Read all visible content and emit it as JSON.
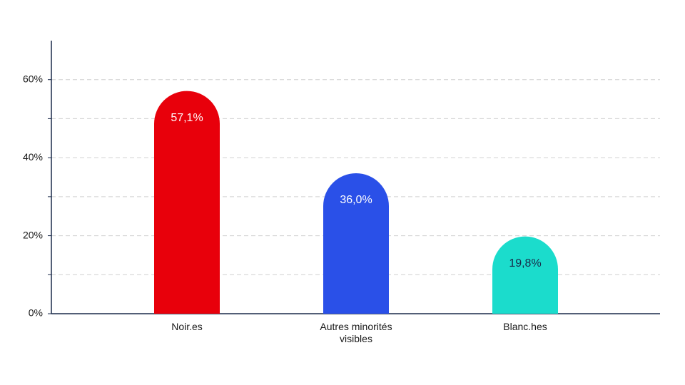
{
  "chart_data": {
    "type": "bar",
    "categories": [
      "Noir.es",
      "Autres minorités visibles",
      "Blanc.hes"
    ],
    "values": [
      57.1,
      36.0,
      19.8
    ],
    "value_labels": [
      "57,1%",
      "36,0%",
      "19,8%"
    ],
    "colors": [
      "#e8000b",
      "#2a50e8",
      "#1bdccc"
    ],
    "value_label_colors": [
      "#ffffff",
      "#ffffff",
      "#1a2a4a"
    ],
    "ylim": [
      0,
      70
    ],
    "yticks": [
      {
        "value": 0,
        "label": "0%"
      },
      {
        "value": 20,
        "label": "20%"
      },
      {
        "value": 40,
        "label": "40%"
      },
      {
        "value": 60,
        "label": "60%"
      }
    ],
    "minor_yticks": [
      10,
      30,
      50
    ],
    "grid": true
  }
}
